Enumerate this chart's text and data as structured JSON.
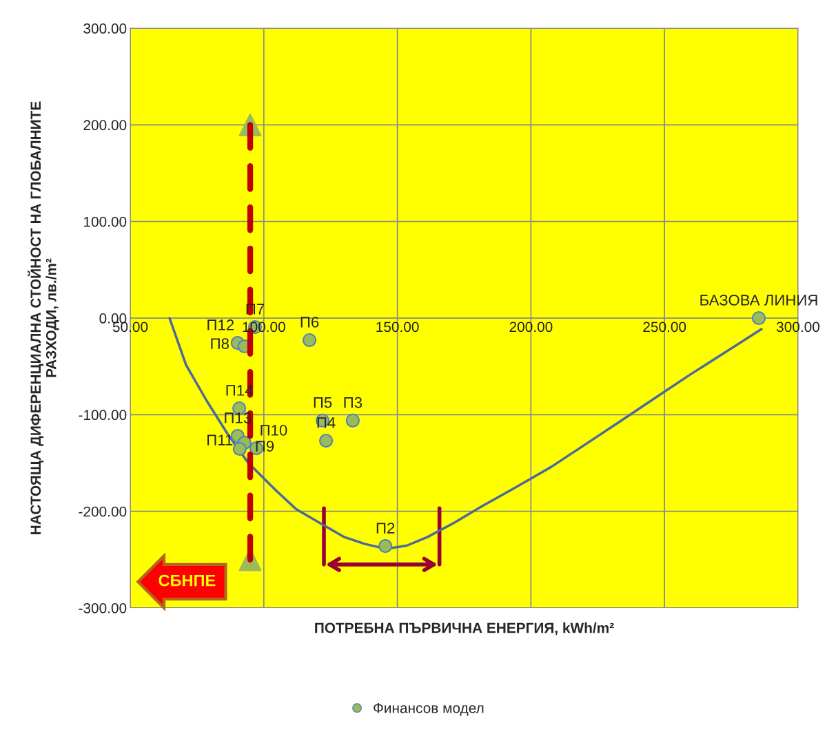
{
  "chart_data": {
    "type": "scatter",
    "xlabel": "ПОТРЕБНА ПЪРВИЧНА ЕНЕРГИЯ, kWh/m²",
    "ylabel": "НАСТОЯЩА ДИФЕРЕНЦИАЛНА СТОЙНОСТ НА ГЛОБАЛНИТЕ\nРАЗХОДИ, лв./m²",
    "xlim": [
      50,
      300
    ],
    "ylim": [
      -300,
      300
    ],
    "xticks": [
      {
        "value": 50,
        "label": "50.00"
      },
      {
        "value": 100,
        "label": "100.00"
      },
      {
        "value": 150,
        "label": "150.00"
      },
      {
        "value": 200,
        "label": "200.00"
      },
      {
        "value": 250,
        "label": "250.00"
      },
      {
        "value": 300,
        "label": "300.00"
      }
    ],
    "yticks": [
      {
        "value": -300,
        "label": "-300.00"
      },
      {
        "value": -200,
        "label": "-200.00"
      },
      {
        "value": -100,
        "label": "-100.00"
      },
      {
        "value": 0,
        "label": "0.00"
      },
      {
        "value": 100,
        "label": "100.00"
      },
      {
        "value": 200,
        "label": "200.00"
      },
      {
        "value": 300,
        "label": "300.00"
      }
    ],
    "grid": true,
    "legend": "bottom",
    "series": [
      {
        "name": "Финансов модел",
        "color": "#9bbb59",
        "marker": "circle",
        "x": [
          96.7,
          90.2,
          92.8,
          117.1,
          90.8,
          90.2,
          92.8,
          91.0,
          97.2,
          122.0,
          133.3,
          123.3,
          145.5,
          285.3
        ],
        "values": [
          -9.3,
          -25.7,
          -29.2,
          -22.8,
          -93.4,
          -121.9,
          -129.0,
          -135.4,
          -134.7,
          -106.0,
          -106.0,
          -126.9,
          -236.0,
          0
        ]
      },
      {
        "type": "line",
        "color": "#4a6a9a",
        "marker": "none",
        "line_style": "solid",
        "x": [
          64.7,
          70.9,
          78.6,
          86.4,
          94.1,
          104.4,
          112.2,
          122.5,
          130.2,
          137.9,
          145.7,
          153.5,
          161.2,
          171.5,
          181.8,
          194.7,
          207.6,
          220.5,
          233.4,
          246.3,
          259.2,
          272.8,
          286.3
        ],
        "values": [
          0,
          -48.5,
          -85.5,
          -119.7,
          -149.7,
          -178.0,
          -198.0,
          -214.5,
          -226.7,
          -233.8,
          -238.8,
          -235.5,
          -226.7,
          -211.5,
          -194.6,
          -174.5,
          -154.0,
          -130.5,
          -106.9,
          -83.0,
          -59.2,
          -35.3,
          -11.4
        ]
      },
      {
        "type": "line",
        "color": "#c00000",
        "marker": "none",
        "line_style": "dashed",
        "x": [
          94.9,
          94.9
        ],
        "values": [
          200,
          -250
        ]
      },
      {
        "color": "#9bbb59",
        "marker": "triangle",
        "x": [
          94.9,
          94.9
        ],
        "values": [
          200,
          -250
        ]
      }
    ],
    "annotations": [
      {
        "text": "П7",
        "x": 96.7,
        "y": -9.3
      },
      {
        "text": "П12",
        "x": 90.2,
        "y": -25.7
      },
      {
        "text": "П8",
        "x": 92.8,
        "y": -29.2
      },
      {
        "text": "П6",
        "x": 117.1,
        "y": -22.8
      },
      {
        "text": "П14",
        "x": 90.8,
        "y": -93.4
      },
      {
        "text": "П13",
        "x": 90.2,
        "y": -121.9
      },
      {
        "text": "П11",
        "x": 92.8,
        "y": -129.0
      },
      {
        "text": "П9",
        "x": 91.0,
        "y": -135.4
      },
      {
        "text": "П10",
        "x": 97.2,
        "y": -134.7
      },
      {
        "text": "П5",
        "x": 122.0,
        "y": -106.0
      },
      {
        "text": "П3",
        "x": 133.3,
        "y": -106.0
      },
      {
        "text": "П4",
        "x": 123.3,
        "y": -126.9
      },
      {
        "text": "П2",
        "x": 145.5,
        "y": -236.0
      },
      {
        "text": "БАЗОВА ЛИНИЯ",
        "x": 285.3,
        "y": 0
      },
      "СБНПЕ"
    ]
  }
}
